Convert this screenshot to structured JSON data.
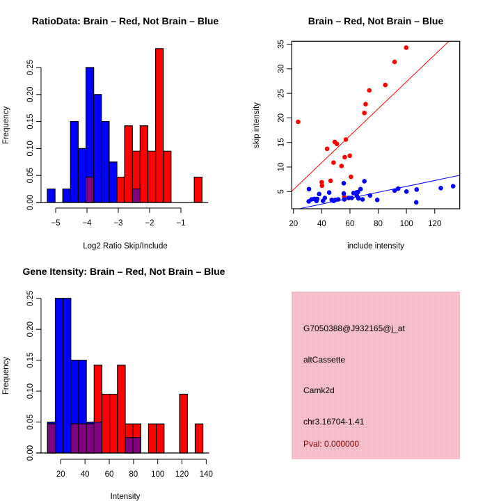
{
  "colors": {
    "red": "#ff0000",
    "blue": "#0000ff",
    "purple": "#800080",
    "panel": "#f5c4cf",
    "pval": "#8b0000"
  },
  "chart_data": [
    {
      "type": "bar",
      "subtype": "overlaid-histogram",
      "title": "RatioData: Brain – Red, Not Brain – Blue",
      "xlabel": "Log2 Ratio Skip/Include",
      "ylabel": "Frequency",
      "xticks": [
        -5,
        -4,
        -3,
        -2,
        -1
      ],
      "xtick_labels": [
        "−5",
        "−4",
        "−3",
        "−2",
        "−1"
      ],
      "yticks": [
        0,
        0.05,
        0.1,
        0.15,
        0.2,
        0.25
      ],
      "ytick_labels": [
        "0.00",
        "0.05",
        "0.10",
        "0.15",
        "0.20",
        "0.25"
      ],
      "bin_start": -5.267,
      "bin_width": 0.247,
      "series": [
        {
          "name": "Not Brain",
          "color": "blue",
          "values": [
            0.025,
            0,
            0.025,
            0.15,
            0.1,
            0.25,
            0.2,
            0.15,
            0.075,
            0,
            0,
            0.025,
            0,
            0,
            0,
            0,
            0,
            0,
            0,
            0
          ]
        },
        {
          "name": "Brain",
          "color": "red",
          "values": [
            0,
            0,
            0,
            0,
            0,
            0.047,
            0,
            0,
            0,
            0.047,
            0.142,
            0.095,
            0.142,
            0.095,
            0.285,
            0.095,
            0,
            0,
            0,
            0.047
          ]
        }
      ]
    },
    {
      "type": "scatter",
      "title": "Brain – Red, Not Brain – Blue",
      "xlabel": "include intensity",
      "ylabel": "skip intensity",
      "xlim": [
        18.8,
        137.7
      ],
      "ylim": [
        1.5,
        35.6
      ],
      "xticks": [
        20,
        40,
        60,
        80,
        100,
        120
      ],
      "xtick_labels": [
        "20",
        "40",
        "60",
        "80",
        "100",
        "120"
      ],
      "yticks": [
        5,
        10,
        15,
        20,
        25,
        30,
        35
      ],
      "ytick_labels": [
        "5",
        "10",
        "15",
        "20",
        "25",
        "30",
        "35"
      ],
      "series": [
        {
          "name": "Brain",
          "color": "red",
          "x": [
            23.3,
            43.8,
            40.0,
            40.2,
            46.3,
            48.4,
            49.2,
            50.7,
            54.0,
            56.3,
            57.1,
            59.9,
            60.7,
            56.0,
            70.2,
            71.1,
            73.7,
            85.0,
            91.6,
            99.8
          ],
          "y": [
            19.2,
            13.7,
            6.9,
            6.2,
            7.2,
            10.9,
            15.1,
            14.7,
            10.2,
            12.0,
            15.6,
            12.3,
            8.0,
            3.9,
            21.0,
            22.8,
            25.6,
            26.7,
            31.4,
            34.3
          ],
          "fit": {
            "slope": 0.2745,
            "intercept": -0.09
          }
        },
        {
          "name": "Not Brain",
          "color": "blue",
          "x": [
            31.0,
            30.8,
            32.8,
            34.8,
            36.3,
            36.8,
            38.2,
            40.9,
            42.2,
            45.3,
            47.1,
            48.4,
            49.7,
            51.7,
            55.6,
            55.6,
            56.0,
            59.1,
            61.2,
            62.5,
            64.5,
            65.6,
            67.5,
            64.8,
            66.0,
            68.9,
            70.2,
            74.2,
            79.3,
            91.6,
            94.1,
            100.0,
            107.2,
            106.9,
            124.3,
            133.0
          ],
          "y": [
            5.5,
            3.0,
            3.4,
            3.5,
            3.1,
            3.5,
            4.5,
            3.1,
            3.7,
            4.8,
            3.3,
            3.1,
            3.3,
            3.4,
            6.7,
            4.6,
            3.4,
            3.7,
            3.7,
            4.7,
            4.8,
            4.9,
            5.5,
            4.2,
            3.6,
            3.4,
            7.1,
            4.2,
            3.3,
            5.2,
            5.6,
            5.0,
            5.4,
            2.8,
            5.7,
            6.1
          ],
          "fit": {
            "slope": 0.06,
            "intercept": 0.05
          }
        }
      ]
    },
    {
      "type": "bar",
      "subtype": "overlaid-histogram",
      "title": "Gene Itensity: Brain – Red, Not Brain – Blue",
      "xlabel": "Intensity",
      "ylabel": "Frequency",
      "xticks": [
        20,
        40,
        60,
        80,
        100,
        120,
        140
      ],
      "xtick_labels": [
        "20",
        "40",
        "60",
        "80",
        "100",
        "120",
        "140"
      ],
      "yticks": [
        0,
        0.05,
        0.1,
        0.15,
        0.2,
        0.25
      ],
      "ytick_labels": [
        "0.00",
        "0.05",
        "0.10",
        "0.15",
        "0.20",
        "0.25"
      ],
      "bin_start": 9.1,
      "bin_width": 6.41,
      "series": [
        {
          "name": "Not Brain",
          "color": "blue",
          "values": [
            0.05,
            0.25,
            0.25,
            0.15,
            0.15,
            0.05,
            0.05,
            0,
            0,
            0,
            0.025,
            0.025,
            0,
            0,
            0,
            0,
            0,
            0,
            0,
            0
          ]
        },
        {
          "name": "Brain",
          "color": "red",
          "values": [
            0.047,
            0,
            0,
            0.047,
            0.047,
            0.047,
            0.142,
            0.095,
            0.095,
            0.142,
            0.047,
            0.047,
            0,
            0.047,
            0.047,
            0,
            0,
            0.095,
            0,
            0.047
          ]
        }
      ]
    }
  ],
  "info": {
    "probe": "G7050388@J932165@j_at",
    "event_type": "altCassette",
    "gene": "Camk2d",
    "location": "chr3.16704-1.41",
    "pval": "Pval: 0.000000"
  }
}
